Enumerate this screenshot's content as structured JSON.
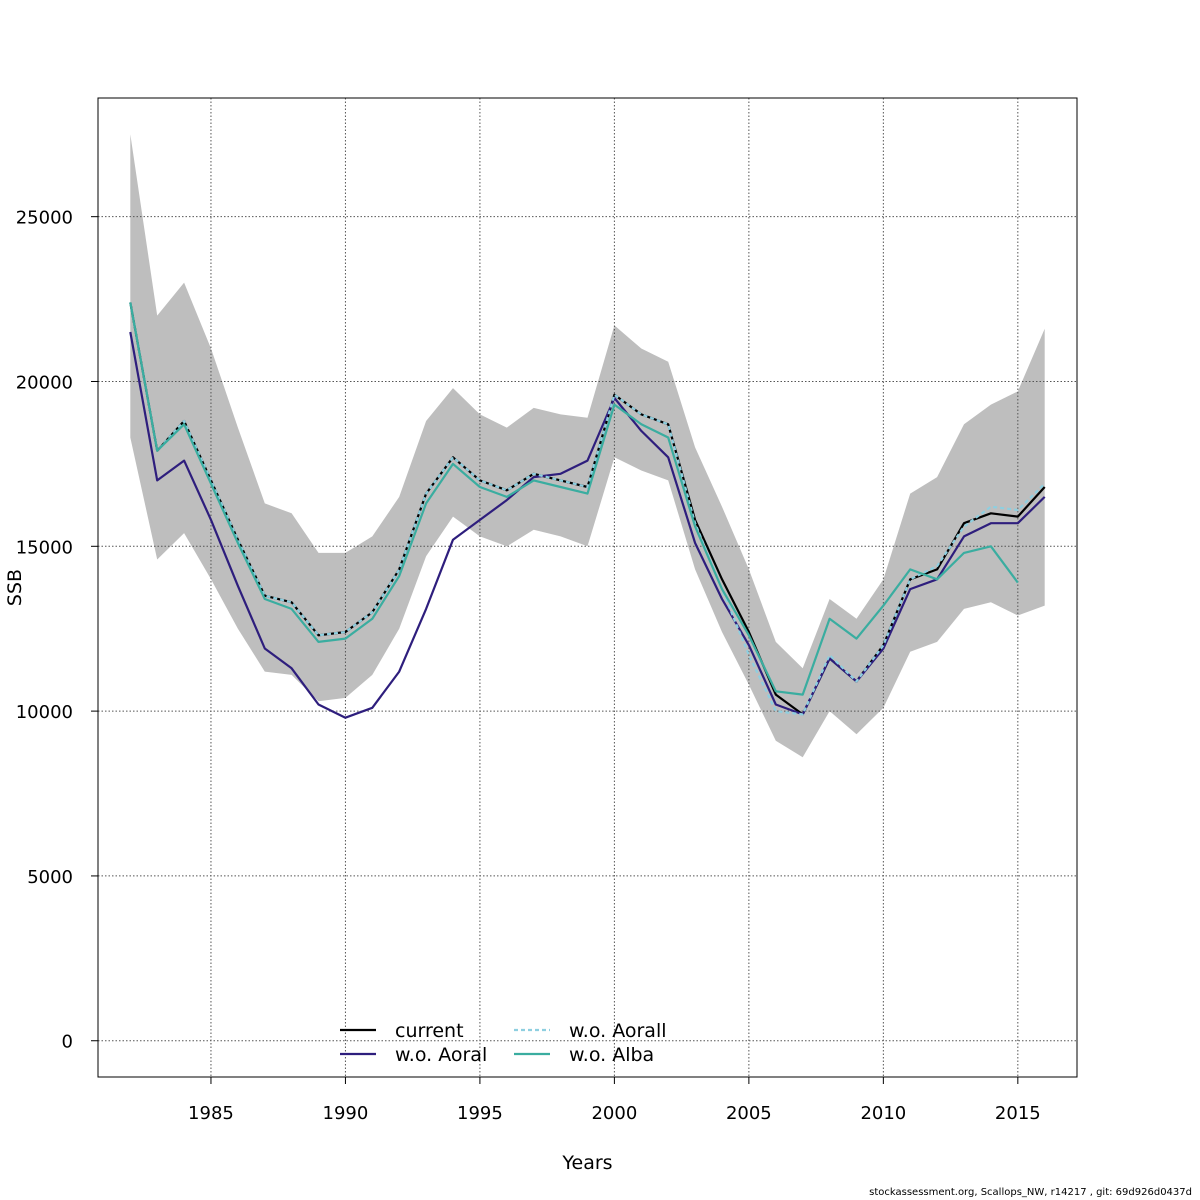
{
  "chart_data": {
    "type": "line",
    "title": "",
    "xlabel": "Years",
    "ylabel": "SSB",
    "xlim": [
      1980.8,
      2017.2
    ],
    "ylim": [
      -1100,
      28600
    ],
    "x_ticks": [
      1985,
      1990,
      1995,
      2000,
      2005,
      2010,
      2015
    ],
    "y_ticks": [
      0,
      5000,
      10000,
      15000,
      20000,
      25000
    ],
    "grid": true,
    "legend_position": "bottom-center",
    "x": [
      1982,
      1983,
      1984,
      1985,
      1986,
      1987,
      1988,
      1989,
      1990,
      1991,
      1992,
      1993,
      1994,
      1995,
      1996,
      1997,
      1998,
      1999,
      2000,
      2001,
      2002,
      2003,
      2004,
      2005,
      2006,
      2007,
      2008,
      2009,
      2010,
      2011,
      2012,
      2013,
      2014,
      2015,
      2016
    ],
    "band": {
      "color": "#bebebe",
      "upper": [
        27500,
        22000,
        23000,
        21000,
        18600,
        16300,
        16000,
        14800,
        14800,
        15300,
        16500,
        18800,
        19800,
        19000,
        18600,
        19200,
        19000,
        18900,
        21700,
        21000,
        20600,
        18000,
        16200,
        14300,
        12100,
        11300,
        13400,
        12800,
        14000,
        16600,
        17100,
        18700,
        19300,
        19700,
        21600
      ],
      "lower": [
        18300,
        14600,
        15400,
        14000,
        12500,
        11200,
        11100,
        10300,
        10400,
        11100,
        12500,
        14700,
        15900,
        15300,
        15000,
        15500,
        15300,
        15000,
        17700,
        17300,
        17000,
        14300,
        12400,
        10800,
        9100,
        8600,
        10000,
        9300,
        10100,
        11800,
        12100,
        13100,
        13300,
        12900,
        13200
      ]
    },
    "series": [
      {
        "name": "current",
        "color": "#000000",
        "dash": "",
        "width": 2.2,
        "values": [
          22400,
          17900,
          18800,
          17000,
          15200,
          13500,
          13300,
          12300,
          12400,
          13000,
          14300,
          16600,
          17700,
          17000,
          16700,
          17200,
          17000,
          16800,
          19600,
          19000,
          18700,
          15800,
          14000,
          12400,
          10500,
          9900,
          11600,
          10900,
          12000,
          14000,
          14300,
          15700,
          16000,
          15900,
          16800
        ]
      },
      {
        "name": "w.o. Aoral",
        "color": "#2e1e7d",
        "dash": "",
        "width": 2.2,
        "values": [
          21500,
          17000,
          17600,
          15800,
          13800,
          11900,
          11300,
          10200,
          9800,
          10100,
          11200,
          13100,
          15200,
          15800,
          16400,
          17100,
          17200,
          17600,
          19500,
          18500,
          17700,
          15100,
          13400,
          12000,
          10200,
          9900,
          11600,
          10900,
          11900,
          13700,
          14000,
          15300,
          15700,
          15700,
          16500
        ]
      },
      {
        "name": "w.o. Aorall",
        "color": "#8ecfe0",
        "dash": "4 3",
        "width": 2.2,
        "values": [
          22400,
          17900,
          18800,
          17000,
          15200,
          13500,
          13300,
          12300,
          12400,
          13000,
          14300,
          16600,
          17700,
          17000,
          16700,
          17200,
          17000,
          16800,
          19600,
          19000,
          18700,
          15700,
          13700,
          11700,
          10000,
          9900,
          11700,
          10900,
          12000,
          14000,
          14400,
          15600,
          16200,
          16100,
          16900
        ]
      },
      {
        "name": "w.o. Alba",
        "color": "#3aada0",
        "dash": "",
        "width": 2.2,
        "values": [
          22400,
          17900,
          18700,
          16900,
          15100,
          13400,
          13100,
          12100,
          12200,
          12800,
          14100,
          16300,
          17500,
          16800,
          16500,
          17000,
          16800,
          16600,
          19300,
          18700,
          18300,
          15600,
          13700,
          12300,
          10600,
          10500,
          12800,
          12200,
          13200,
          14300,
          14000,
          14800,
          15000,
          13900,
          null
        ]
      }
    ]
  },
  "footer_text": "stockassessment.org, Scallops_NW, r14217 , git: 69d926d0437d"
}
